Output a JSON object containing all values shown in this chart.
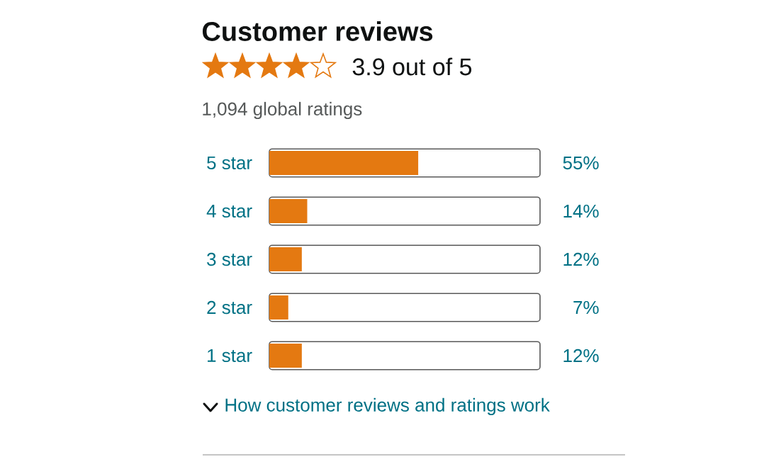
{
  "chart_data": {
    "type": "bar",
    "orientation": "horizontal",
    "title": "Customer reviews",
    "subtitle": "3.9 out of 5",
    "annotations": [
      "1,094 global ratings",
      "How customer reviews and ratings work"
    ],
    "categories": [
      "5 star",
      "4 star",
      "3 star",
      "2 star",
      "1 star"
    ],
    "values": [
      55,
      14,
      12,
      7,
      12
    ],
    "value_labels": [
      "55%",
      "14%",
      "12%",
      "7%",
      "12%"
    ],
    "color": "#e47911",
    "xlim": [
      0,
      100
    ]
  }
}
